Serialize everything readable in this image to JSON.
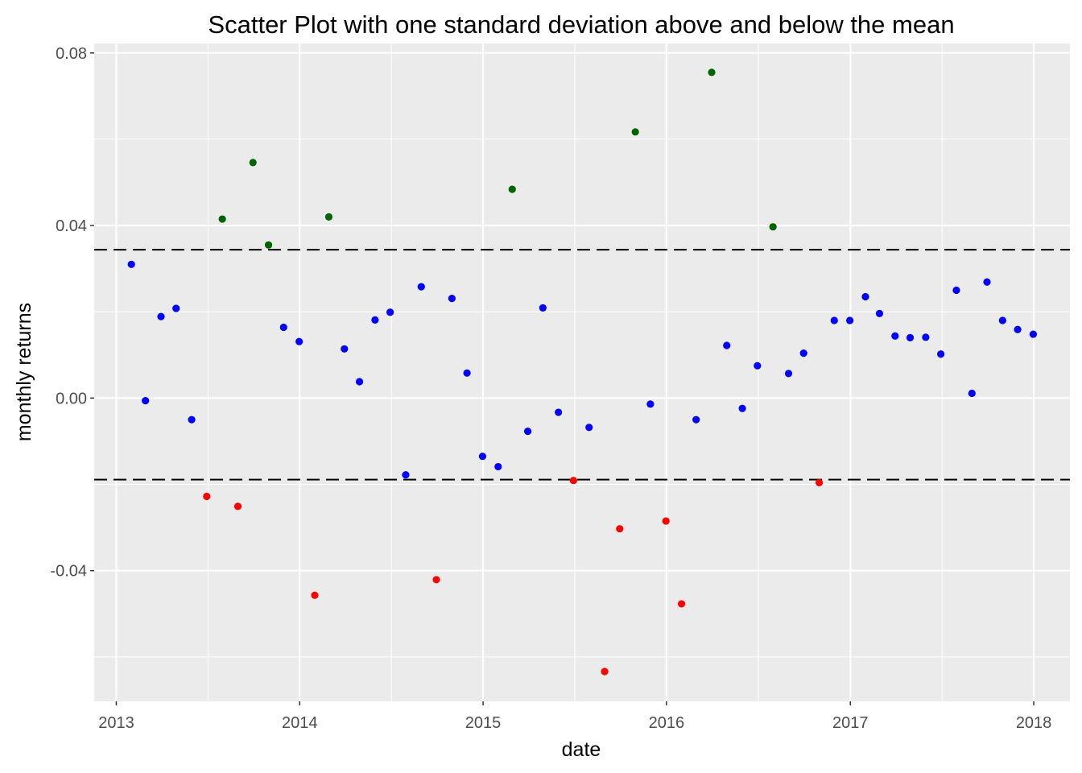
{
  "chart_data": {
    "type": "scatter",
    "title": "Scatter Plot with one standard deviation above and below the mean",
    "xlabel": "date",
    "ylabel": "monthly returns",
    "x_ticks": [
      "2013",
      "2014",
      "2015",
      "2016",
      "2017",
      "2018"
    ],
    "y_ticks": [
      "-0.04",
      "0.00",
      "0.04",
      "0.08"
    ],
    "xlim": [
      "2012-11-18",
      "2018-03-14"
    ],
    "ylim": [
      -0.0703,
      0.0822
    ],
    "grid": true,
    "reference_lines": [
      {
        "style": "dashed",
        "y": 0.0344
      },
      {
        "style": "dashed",
        "y": -0.0189
      }
    ],
    "colors": {
      "panel_background": "#ebebeb",
      "grid": "#ffffff",
      "reference_line": "#000000",
      "above_one_sd": "#006400",
      "within_one_sd": "#0000ff",
      "below_one_sd": "#ff0000"
    },
    "points": [
      {
        "date": "2013-01-31",
        "y": 0.031,
        "group": "within_one_sd"
      },
      {
        "date": "2013-02-28",
        "y": -0.0006,
        "group": "within_one_sd"
      },
      {
        "date": "2013-03-31",
        "y": 0.0189,
        "group": "within_one_sd"
      },
      {
        "date": "2013-04-30",
        "y": 0.0208,
        "group": "within_one_sd"
      },
      {
        "date": "2013-05-31",
        "y": -0.005,
        "group": "within_one_sd"
      },
      {
        "date": "2013-06-30",
        "y": -0.0228,
        "group": "below_one_sd"
      },
      {
        "date": "2013-07-31",
        "y": 0.0415,
        "group": "above_one_sd"
      },
      {
        "date": "2013-08-31",
        "y": -0.0251,
        "group": "below_one_sd"
      },
      {
        "date": "2013-09-30",
        "y": 0.0546,
        "group": "above_one_sd"
      },
      {
        "date": "2013-10-31",
        "y": 0.0355,
        "group": "above_one_sd"
      },
      {
        "date": "2013-11-30",
        "y": 0.0164,
        "group": "within_one_sd"
      },
      {
        "date": "2013-12-31",
        "y": 0.0131,
        "group": "within_one_sd"
      },
      {
        "date": "2014-01-31",
        "y": -0.0457,
        "group": "below_one_sd"
      },
      {
        "date": "2014-02-28",
        "y": 0.042,
        "group": "above_one_sd"
      },
      {
        "date": "2014-03-31",
        "y": 0.0114,
        "group": "within_one_sd"
      },
      {
        "date": "2014-04-30",
        "y": 0.0038,
        "group": "within_one_sd"
      },
      {
        "date": "2014-05-31",
        "y": 0.0181,
        "group": "within_one_sd"
      },
      {
        "date": "2014-06-30",
        "y": 0.0199,
        "group": "within_one_sd"
      },
      {
        "date": "2014-07-31",
        "y": -0.0178,
        "group": "within_one_sd"
      },
      {
        "date": "2014-08-31",
        "y": 0.0258,
        "group": "within_one_sd"
      },
      {
        "date": "2014-09-30",
        "y": -0.0421,
        "group": "below_one_sd"
      },
      {
        "date": "2014-10-31",
        "y": 0.0231,
        "group": "within_one_sd"
      },
      {
        "date": "2014-11-30",
        "y": 0.0058,
        "group": "within_one_sd"
      },
      {
        "date": "2014-12-31",
        "y": -0.0135,
        "group": "within_one_sd"
      },
      {
        "date": "2015-01-31",
        "y": -0.0159,
        "group": "within_one_sd"
      },
      {
        "date": "2015-02-28",
        "y": 0.0484,
        "group": "above_one_sd"
      },
      {
        "date": "2015-03-31",
        "y": -0.0077,
        "group": "within_one_sd"
      },
      {
        "date": "2015-04-30",
        "y": 0.0209,
        "group": "within_one_sd"
      },
      {
        "date": "2015-05-31",
        "y": -0.0033,
        "group": "within_one_sd"
      },
      {
        "date": "2015-06-30",
        "y": -0.0191,
        "group": "below_one_sd"
      },
      {
        "date": "2015-07-31",
        "y": -0.0068,
        "group": "within_one_sd"
      },
      {
        "date": "2015-08-31",
        "y": -0.0634,
        "group": "below_one_sd"
      },
      {
        "date": "2015-09-30",
        "y": -0.0303,
        "group": "below_one_sd"
      },
      {
        "date": "2015-10-31",
        "y": 0.0617,
        "group": "above_one_sd"
      },
      {
        "date": "2015-11-30",
        "y": -0.0014,
        "group": "within_one_sd"
      },
      {
        "date": "2015-12-31",
        "y": -0.0285,
        "group": "below_one_sd"
      },
      {
        "date": "2016-01-31",
        "y": -0.0477,
        "group": "below_one_sd"
      },
      {
        "date": "2016-02-29",
        "y": -0.005,
        "group": "within_one_sd"
      },
      {
        "date": "2016-03-31",
        "y": 0.0755,
        "group": "above_one_sd"
      },
      {
        "date": "2016-04-30",
        "y": 0.0122,
        "group": "within_one_sd"
      },
      {
        "date": "2016-05-31",
        "y": -0.0024,
        "group": "within_one_sd"
      },
      {
        "date": "2016-06-30",
        "y": 0.0075,
        "group": "within_one_sd"
      },
      {
        "date": "2016-07-31",
        "y": 0.0397,
        "group": "above_one_sd"
      },
      {
        "date": "2016-08-31",
        "y": 0.0057,
        "group": "within_one_sd"
      },
      {
        "date": "2016-09-30",
        "y": 0.0104,
        "group": "within_one_sd"
      },
      {
        "date": "2016-10-31",
        "y": -0.0196,
        "group": "below_one_sd"
      },
      {
        "date": "2016-11-30",
        "y": 0.018,
        "group": "within_one_sd"
      },
      {
        "date": "2016-12-31",
        "y": 0.018,
        "group": "within_one_sd"
      },
      {
        "date": "2017-01-31",
        "y": 0.0235,
        "group": "within_one_sd"
      },
      {
        "date": "2017-02-28",
        "y": 0.0196,
        "group": "within_one_sd"
      },
      {
        "date": "2017-03-31",
        "y": 0.0144,
        "group": "within_one_sd"
      },
      {
        "date": "2017-04-30",
        "y": 0.014,
        "group": "within_one_sd"
      },
      {
        "date": "2017-05-31",
        "y": 0.0141,
        "group": "within_one_sd"
      },
      {
        "date": "2017-06-30",
        "y": 0.0102,
        "group": "within_one_sd"
      },
      {
        "date": "2017-07-31",
        "y": 0.025,
        "group": "within_one_sd"
      },
      {
        "date": "2017-08-31",
        "y": 0.0011,
        "group": "within_one_sd"
      },
      {
        "date": "2017-09-30",
        "y": 0.0269,
        "group": "within_one_sd"
      },
      {
        "date": "2017-10-31",
        "y": 0.018,
        "group": "within_one_sd"
      },
      {
        "date": "2017-11-30",
        "y": 0.0159,
        "group": "within_one_sd"
      },
      {
        "date": "2017-12-31",
        "y": 0.0148,
        "group": "within_one_sd"
      }
    ]
  }
}
